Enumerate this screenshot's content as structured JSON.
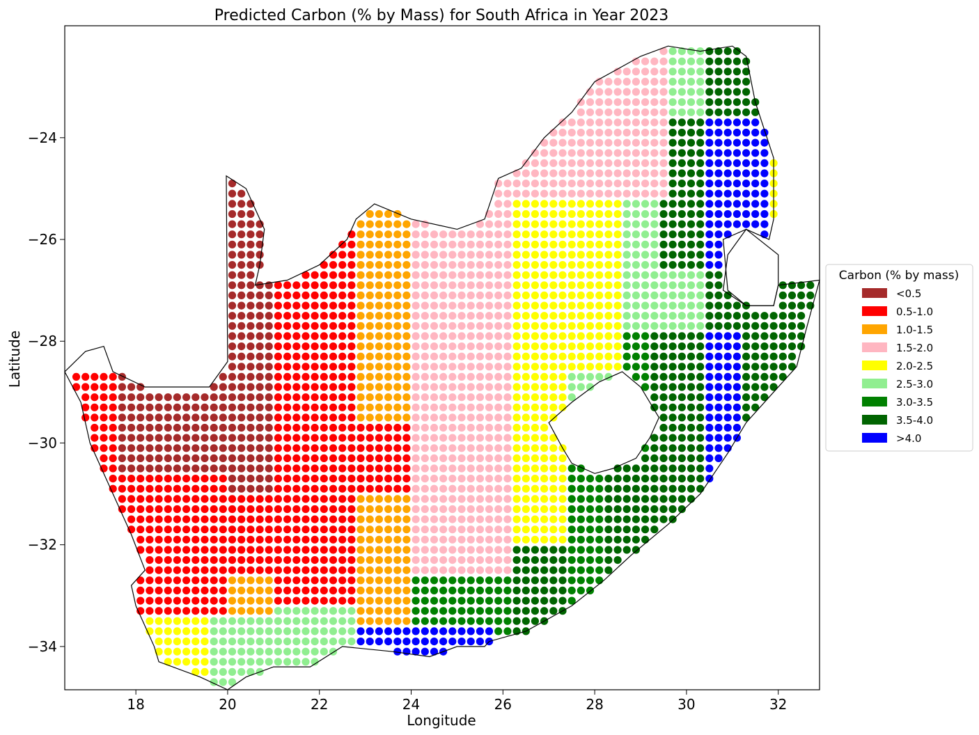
{
  "chart_data": {
    "type": "scatter",
    "title": "Predicted Carbon (% by Mass) for South Africa in Year 2023",
    "xlabel": "Longitude",
    "ylabel": "Latitude",
    "xlim": [
      16.45,
      32.9
    ],
    "ylim": [
      -34.85,
      -21.8
    ],
    "x_ticks": [
      "18",
      "20",
      "22",
      "24",
      "26",
      "28",
      "30",
      "32"
    ],
    "y_ticks": [
      "−24",
      "−26",
      "−28",
      "−30",
      "−32",
      "−34"
    ],
    "grid": false,
    "legend_position": "right",
    "legend_title": "Carbon (% by mass)",
    "classes": [
      {
        "label": "<0.5",
        "color": "#a52a2a"
      },
      {
        "label": "0.5-1.0",
        "color": "#ff0000"
      },
      {
        "label": "1.0-1.5",
        "color": "#ffa500"
      },
      {
        "label": "1.5-2.0",
        "color": "#ffb6c1"
      },
      {
        "label": "2.0-2.5",
        "color": "#ffff00"
      },
      {
        "label": "2.5-3.0",
        "color": "#90ee90"
      },
      {
        "label": "3.0-3.5",
        "color": "#008000"
      },
      {
        "label": "3.5-4.0",
        "color": "#006400"
      },
      {
        "label": ">4.0",
        "color": "#0000ff"
      }
    ],
    "boundary": [
      [
        16.45,
        -28.6
      ],
      [
        16.9,
        -28.2
      ],
      [
        17.3,
        -28.1
      ],
      [
        17.5,
        -28.6
      ],
      [
        18.2,
        -28.9
      ],
      [
        19.0,
        -28.9
      ],
      [
        19.6,
        -28.9
      ],
      [
        20.0,
        -28.4
      ],
      [
        19.97,
        -24.75
      ],
      [
        20.4,
        -25.0
      ],
      [
        20.8,
        -25.8
      ],
      [
        20.7,
        -26.5
      ],
      [
        20.6,
        -26.9
      ],
      [
        21.3,
        -26.8
      ],
      [
        22.0,
        -26.5
      ],
      [
        22.6,
        -26.0
      ],
      [
        22.8,
        -25.6
      ],
      [
        23.2,
        -25.3
      ],
      [
        24.0,
        -25.6
      ],
      [
        25.0,
        -25.8
      ],
      [
        25.6,
        -25.6
      ],
      [
        25.9,
        -24.8
      ],
      [
        26.4,
        -24.6
      ],
      [
        26.9,
        -24.0
      ],
      [
        27.5,
        -23.5
      ],
      [
        28.0,
        -22.9
      ],
      [
        29.0,
        -22.4
      ],
      [
        29.6,
        -22.2
      ],
      [
        30.3,
        -22.3
      ],
      [
        31.0,
        -22.2
      ],
      [
        31.3,
        -22.4
      ],
      [
        31.5,
        -23.3
      ],
      [
        31.9,
        -24.4
      ],
      [
        31.9,
        -25.6
      ],
      [
        31.8,
        -26.0
      ],
      [
        31.3,
        -25.8
      ],
      [
        30.9,
        -26.3
      ],
      [
        30.8,
        -27.0
      ],
      [
        31.3,
        -27.3
      ],
      [
        31.9,
        -27.3
      ],
      [
        32.0,
        -26.9
      ],
      [
        32.9,
        -26.8
      ],
      [
        32.6,
        -27.8
      ],
      [
        32.4,
        -28.5
      ],
      [
        31.9,
        -29.0
      ],
      [
        31.3,
        -29.6
      ],
      [
        30.9,
        -30.2
      ],
      [
        30.3,
        -31.0
      ],
      [
        29.6,
        -31.6
      ],
      [
        28.8,
        -32.2
      ],
      [
        28.2,
        -32.7
      ],
      [
        27.5,
        -33.2
      ],
      [
        26.5,
        -33.7
      ],
      [
        25.7,
        -33.9
      ],
      [
        25.6,
        -34.0
      ],
      [
        25.0,
        -34.0
      ],
      [
        24.4,
        -34.2
      ],
      [
        23.6,
        -34.1
      ],
      [
        22.5,
        -34.0
      ],
      [
        21.8,
        -34.4
      ],
      [
        21.0,
        -34.4
      ],
      [
        20.4,
        -34.6
      ],
      [
        20.0,
        -34.85
      ],
      [
        19.4,
        -34.6
      ],
      [
        18.8,
        -34.4
      ],
      [
        18.5,
        -34.3
      ],
      [
        18.4,
        -34.0
      ],
      [
        18.2,
        -33.6
      ],
      [
        18.0,
        -33.2
      ],
      [
        17.9,
        -32.8
      ],
      [
        18.2,
        -32.5
      ],
      [
        17.9,
        -31.8
      ],
      [
        17.4,
        -30.8
      ],
      [
        17.0,
        -30.0
      ],
      [
        16.8,
        -29.2
      ],
      [
        16.45,
        -28.6
      ]
    ],
    "lesotho": [
      [
        27.0,
        -29.6
      ],
      [
        27.5,
        -29.2
      ],
      [
        28.1,
        -28.8
      ],
      [
        28.6,
        -28.6
      ],
      [
        29.0,
        -28.9
      ],
      [
        29.4,
        -29.5
      ],
      [
        29.2,
        -29.9
      ],
      [
        28.9,
        -30.3
      ],
      [
        28.4,
        -30.5
      ],
      [
        28.0,
        -30.6
      ],
      [
        27.5,
        -30.4
      ],
      [
        27.3,
        -30.1
      ],
      [
        27.0,
        -29.6
      ]
    ],
    "eswatini": [
      [
        30.8,
        -26.0
      ],
      [
        31.3,
        -25.8
      ],
      [
        32.0,
        -26.3
      ],
      [
        32.0,
        -26.9
      ],
      [
        31.9,
        -27.3
      ],
      [
        31.3,
        -27.3
      ],
      [
        30.9,
        -27.0
      ],
      [
        30.8,
        -26.0
      ]
    ]
  }
}
